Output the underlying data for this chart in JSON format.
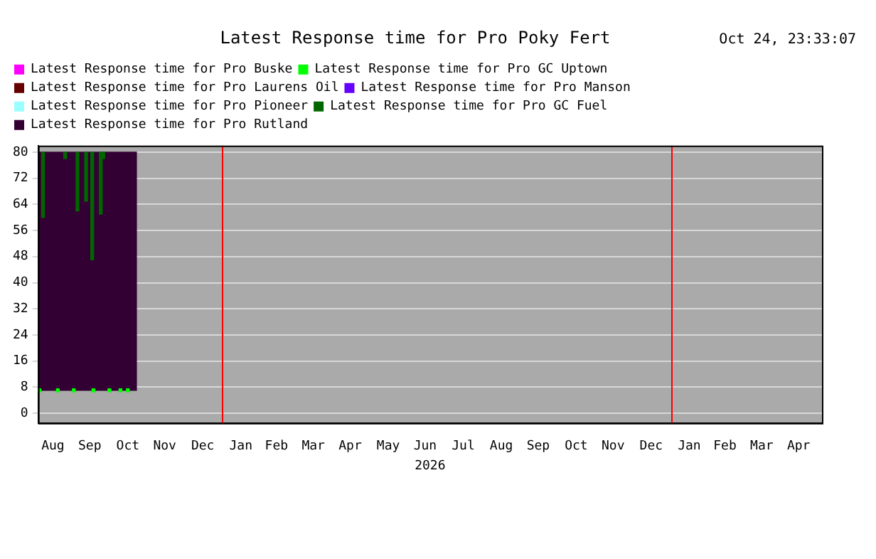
{
  "chart_data": {
    "type": "bar",
    "title": "Latest Response time for Pro Poky Fert",
    "xlabel": "2026",
    "annotations": [
      "Oct 24, 23:33:07"
    ],
    "xlim": [
      "2025-08-04",
      "2027-05-04"
    ],
    "xticks": [
      {
        "value": "2025-08-16",
        "label": "Aug"
      },
      {
        "value": "2025-09-15",
        "label": "Sep"
      },
      {
        "value": "2025-10-16",
        "label": "Oct"
      },
      {
        "value": "2025-11-15",
        "label": "Nov"
      },
      {
        "value": "2025-12-16",
        "label": "Dec"
      },
      {
        "value": "2026-01-16",
        "label": "Jan"
      },
      {
        "value": "2026-02-14",
        "label": "Feb"
      },
      {
        "value": "2026-03-16",
        "label": "Mar"
      },
      {
        "value": "2026-04-15",
        "label": "Apr"
      },
      {
        "value": "2026-05-16",
        "label": "May"
      },
      {
        "value": "2026-06-15",
        "label": "Jun"
      },
      {
        "value": "2026-07-16",
        "label": "Jul"
      },
      {
        "value": "2026-08-16",
        "label": "Aug"
      },
      {
        "value": "2026-09-15",
        "label": "Sep"
      },
      {
        "value": "2026-10-16",
        "label": "Oct"
      },
      {
        "value": "2026-11-15",
        "label": "Nov"
      },
      {
        "value": "2026-12-16",
        "label": "Dec"
      },
      {
        "value": "2027-01-16",
        "label": "Jan"
      },
      {
        "value": "2027-02-14",
        "label": "Feb"
      },
      {
        "value": "2027-03-16",
        "label": "Mar"
      },
      {
        "value": "2027-04-15",
        "label": "Apr"
      }
    ],
    "ylim": [
      -3,
      82
    ],
    "yticks": [
      0,
      8,
      16,
      24,
      32,
      40,
      48,
      56,
      64,
      72,
      80
    ],
    "grid": "y",
    "legend": "top left",
    "ref_lines": [
      {
        "axis": "x",
        "value": "2026-01-01",
        "color": "#ff0000"
      },
      {
        "axis": "x",
        "value": "2027-01-01",
        "color": "#ff0000"
      }
    ],
    "series": [
      {
        "name": "Latest Response time for Pro Buske",
        "color": "#ff00ff"
      },
      {
        "name": "Latest Response time for Pro GC Uptown",
        "color": "#00ff00",
        "x": [
          "2025-08-05",
          "2025-08-20",
          "2025-09-02",
          "2025-09-18",
          "2025-10-01",
          "2025-10-10",
          "2025-10-16"
        ],
        "values": [
          1,
          1,
          1,
          1,
          1,
          1,
          1
        ],
        "base": [
          6.5,
          6.5,
          6.5,
          6.5,
          6.5,
          6.5,
          6.5
        ]
      },
      {
        "name": "Latest Response time for Pro Laurens Oil",
        "color": "#660000"
      },
      {
        "name": "Latest Response time for Pro Manson",
        "color": "#6600ff"
      },
      {
        "name": "Latest Response time for Pro Pioneer",
        "color": "#99ffff"
      },
      {
        "name": "Latest Response time for Pro GC Fuel",
        "color": "#006600",
        "x": [
          "2025-08-08",
          "2025-08-26",
          "2025-09-05",
          "2025-09-12",
          "2025-09-17",
          "2025-09-24",
          "2025-09-26"
        ],
        "values": [
          20,
          2,
          18,
          15,
          33,
          19,
          2
        ],
        "base": [
          60,
          78,
          62,
          65,
          47,
          61,
          78
        ]
      },
      {
        "name": "Latest Response time for Pro Rutland",
        "color": "#330033",
        "x": [
          "2025-09-13"
        ],
        "values": [
          73
        ],
        "base": [
          7
        ]
      }
    ]
  }
}
